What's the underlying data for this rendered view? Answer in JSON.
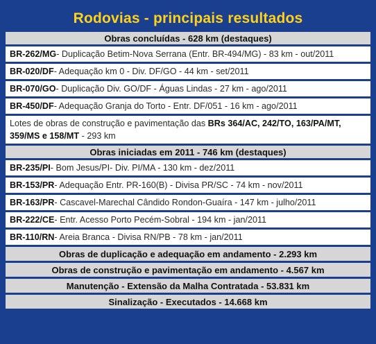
{
  "title": "Rodovias - principais resultados",
  "concluidas": {
    "header": "Obras concluídas - 628 km (destaques)",
    "items": [
      {
        "code": "BR-262/MG",
        "text": " - Duplicação Betim-Nova Serrana (Entr. BR-494/MG) - 83 km - out/2011"
      },
      {
        "code": "BR-020/DF",
        "text": " - Adequação km 0 - Div. DF/GO - 44 km - set/2011"
      },
      {
        "code": "BR-070/GO",
        "text": " - Duplicação Div. GO/DF - Águas Lindas - 27 km - ago/2011"
      },
      {
        "code": "BR-450/DF",
        "text": " - Adequação Granja do Torto - Entr. DF/051 - 16 km - ago/2011"
      }
    ],
    "lotes": {
      "prefix": "Lotes de obras de construção e pavimentação das ",
      "brs1": "BRs 364/AC, 242/TO, 163/PA/MT,",
      "brs2": "359/MS",
      "mid": " e ",
      "brs3": "158/MT",
      "suffix": " - 293 km"
    }
  },
  "iniciadas": {
    "header": "Obras iniciadas em 2011 - 746 km (destaques)",
    "items": [
      {
        "code": "BR-235/PI",
        "text": " - Bom Jesus/PI- Div. PI/MA - 130 km - dez/2011"
      },
      {
        "code": "BR-153/PR",
        "text": " - Adequação Entr. PR-160(B) - Divisa PR/SC - 74 km - nov/2011"
      },
      {
        "code": "BR-163/PR",
        "text": " - Cascavel-Marechal Cândido Rondon-Guaíra - 147 km - julho/2011"
      },
      {
        "code": "BR-222/CE",
        "text": " - Entr. Acesso Porto Pecém-Sobral - 194 km - jan/2011"
      },
      {
        "code": "BR-110/RN",
        "text": " - Areia Branca - Divisa RN/PB - 78 km - jan/2011"
      }
    ]
  },
  "summary": [
    "Obras de duplicação e adequação em andamento - 2.293 km",
    "Obras de construção e pavimentação em andamento - 4.567 km",
    "Manutenção - Extensão da Malha Contratada - 53.831 km",
    "Sinalização - Executados - 14.668 km"
  ]
}
